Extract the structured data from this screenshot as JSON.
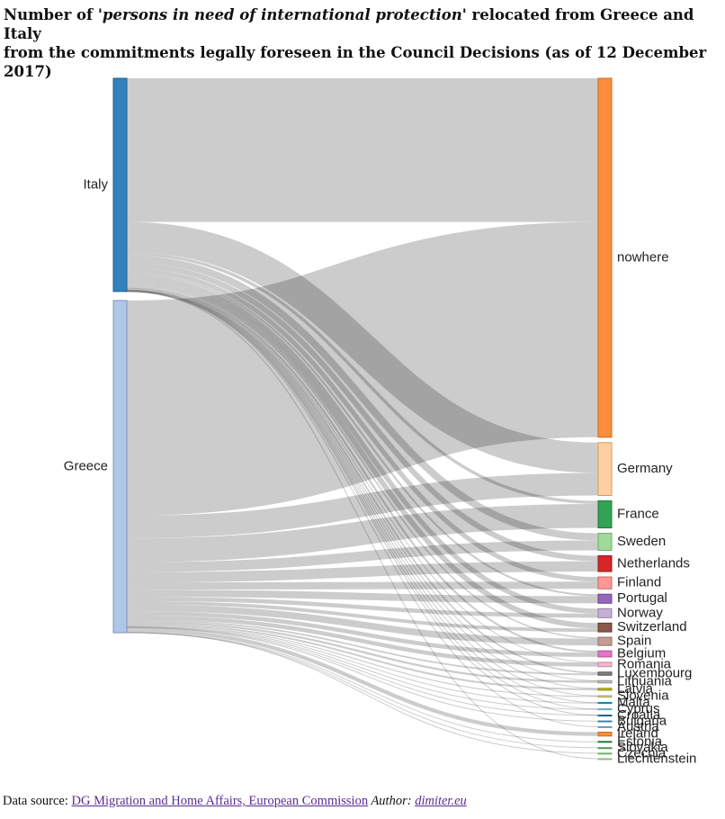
{
  "title": {
    "prefix": "Number of ",
    "italic": "'persons in need of international protection'",
    "line1_rest": " relocated from Greece and Italy",
    "line2": "from the commitments legally foreseen in the Council Decisions (as of 12 December 2017)"
  },
  "footer": {
    "source_label": "Data source: ",
    "source_link": "DG Migration and Home Affairs, European Commission",
    "author_label": " Author: ",
    "author_link": "dimiter.eu"
  },
  "chart_data": {
    "type": "sankey",
    "sources": [
      {
        "name": "Italy",
        "color": "#3182bd",
        "stroke": "#22608f"
      },
      {
        "name": "Greece",
        "color": "#aec7e8",
        "stroke": "#7f98b8"
      }
    ],
    "targets": [
      {
        "name": "nowhere",
        "color": "#fd8d3c",
        "stroke": "#c96a22",
        "Italy": 23972,
        "Greece": 35910
      },
      {
        "name": "Germany",
        "color": "#fdd0a2",
        "stroke": "#d29a60",
        "Italy": 5058,
        "Greece": 3757
      },
      {
        "name": "France",
        "color": "#31a354",
        "stroke": "#1f7a3a",
        "Italy": 515,
        "Greece": 3995
      },
      {
        "name": "Sweden",
        "color": "#a1d99b",
        "stroke": "#6fae69",
        "Italy": 1192,
        "Greece": 1655
      },
      {
        "name": "Netherlands",
        "color": "#d62728",
        "stroke": "#9c1a1b",
        "Italy": 915,
        "Greece": 1720
      },
      {
        "name": "Finland",
        "color": "#ff9896",
        "stroke": "#c96462",
        "Italy": 779,
        "Greece": 1201
      },
      {
        "name": "Portugal",
        "color": "#9467bd",
        "stroke": "#6b4590",
        "Italy": 315,
        "Greece": 1192
      },
      {
        "name": "Norway",
        "color": "#c5b0d5",
        "stroke": "#9582a8",
        "Italy": 816,
        "Greece": 693
      },
      {
        "name": "Switzerland",
        "color": "#8c564b",
        "stroke": "#643a31",
        "Italy": 886,
        "Greece": 580
      },
      {
        "name": "Spain",
        "color": "#c49c94",
        "stroke": "#946c64",
        "Italy": 235,
        "Greece": 1124
      },
      {
        "name": "Belgium",
        "color": "#e377c2",
        "stroke": "#b04f95",
        "Italy": 320,
        "Greece": 698
      },
      {
        "name": "Romania",
        "color": "#f7b6d2",
        "stroke": "#c784a2",
        "Italy": 45,
        "Greece": 683
      },
      {
        "name": "Luxembourg",
        "color": "#7f7f7f",
        "stroke": "#555555",
        "Italy": 249,
        "Greece": 271
      },
      {
        "name": "Lithuania",
        "color": "#c7c7c7",
        "stroke": "#8f8f8f",
        "Italy": 29,
        "Greece": 355
      },
      {
        "name": "Latvia",
        "color": "#bcbd22",
        "stroke": "#8b8c12",
        "Italy": 27,
        "Greece": 294
      },
      {
        "name": "Slovenia",
        "color": "#dbdb8d",
        "stroke": "#a8a85c",
        "Italy": 60,
        "Greece": 172
      },
      {
        "name": "Malta",
        "color": "#17becf",
        "stroke": "#0e8b98",
        "Italy": 67,
        "Greece": 101
      },
      {
        "name": "Cyprus",
        "color": "#9edae5",
        "stroke": "#6aa9b4",
        "Italy": 47,
        "Greece": 96
      },
      {
        "name": "Croatia",
        "color": "#3182bd",
        "stroke": "#22608f",
        "Italy": 18,
        "Greece": 60
      },
      {
        "name": "Bulgaria",
        "color": "#6baed6",
        "stroke": "#3f82aa",
        "Italy": 0,
        "Greece": 50
      },
      {
        "name": "Austria",
        "color": "#9ecae1",
        "stroke": "#6a9ab2",
        "Italy": 15,
        "Greece": 0
      },
      {
        "name": "Ireland",
        "color": "#fd8d3c",
        "stroke": "#c96a22",
        "Italy": 0,
        "Greece": 647
      },
      {
        "name": "Estonia",
        "color": "#31a354",
        "stroke": "#1f7a3a",
        "Italy": 0,
        "Greece": 141
      },
      {
        "name": "Slovakia",
        "color": "#74c476",
        "stroke": "#4a9a4d",
        "Italy": 0,
        "Greece": 16
      },
      {
        "name": "Czechia",
        "color": "#a1d99b",
        "stroke": "#6fae69",
        "Italy": 0,
        "Greece": 12
      },
      {
        "name": "Liechtenstein",
        "color": "#c7e9c0",
        "stroke": "#8fb888",
        "Italy": 10,
        "Greece": 0
      }
    ]
  }
}
